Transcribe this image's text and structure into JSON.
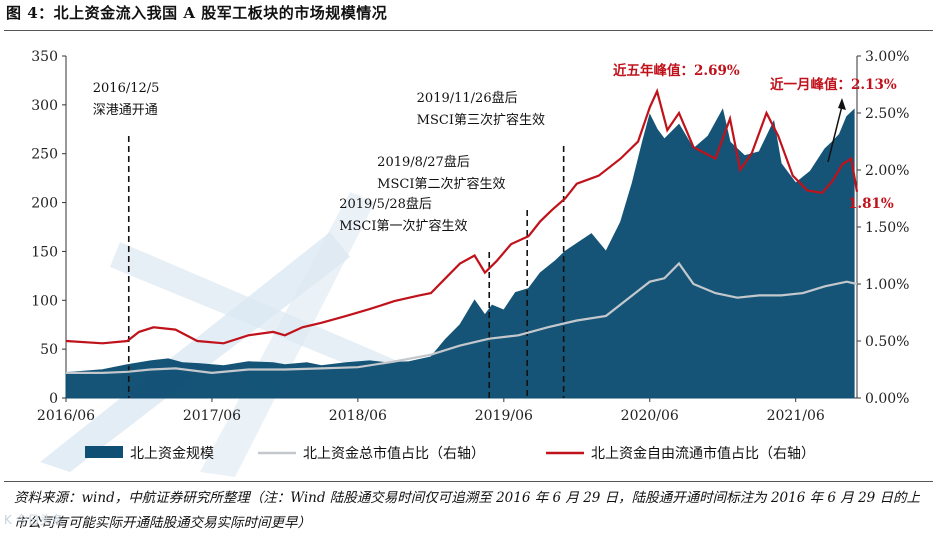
{
  "figure": {
    "title": "图 4：北上资金流入我国 A 股军工板块的市场规模情况",
    "source": "资料来源：wind，中航证券研究所整理（注：Wind 陆股通交易时间仅可追溯至 2016 年 6 月 29 日，陆股通开通时间标注为 2016 年 6 月 29 日的上市公司有可能实际开通陆股通交易实际时间更早）",
    "watermark": "K   今日头条"
  },
  "colors": {
    "area": "#0e4f73",
    "total_ratio_line": "#c4c8cc",
    "free_float_line": "#c0121b",
    "annotation_red": "#c0121b",
    "watermark_blue": "#dce8f2"
  },
  "chart_data": {
    "type": "area",
    "x_ticks": [
      "2016/06",
      "2017/06",
      "2018/06",
      "2019/06",
      "2020/06",
      "2021/06"
    ],
    "y_left": {
      "min": 0,
      "max": 350,
      "step": 50,
      "ticks": [
        "0",
        "50",
        "100",
        "150",
        "200",
        "250",
        "300",
        "350"
      ]
    },
    "y_right": {
      "min": 0,
      "max": 3.0,
      "ticks": [
        "0.00%",
        "0.50%",
        "1.00%",
        "1.50%",
        "2.00%",
        "2.50%",
        "3.00%"
      ]
    },
    "series": [
      {
        "name": "北上资金规模",
        "axis": "left",
        "kind": "area",
        "points": [
          [
            2016.5,
            26
          ],
          [
            2016.75,
            29
          ],
          [
            2016.92,
            34
          ],
          [
            2017.08,
            38
          ],
          [
            2017.2,
            40
          ],
          [
            2017.3,
            36
          ],
          [
            2017.42,
            35
          ],
          [
            2017.58,
            33
          ],
          [
            2017.75,
            37
          ],
          [
            2017.92,
            36
          ],
          [
            2018.0,
            34
          ],
          [
            2018.15,
            36
          ],
          [
            2018.25,
            33
          ],
          [
            2018.42,
            36
          ],
          [
            2018.58,
            38
          ],
          [
            2018.7,
            36
          ],
          [
            2018.85,
            37
          ],
          [
            2019.0,
            42
          ],
          [
            2019.1,
            60
          ],
          [
            2019.2,
            75
          ],
          [
            2019.3,
            100
          ],
          [
            2019.37,
            85
          ],
          [
            2019.42,
            95
          ],
          [
            2019.5,
            90
          ],
          [
            2019.58,
            108
          ],
          [
            2019.67,
            112
          ],
          [
            2019.75,
            128
          ],
          [
            2019.85,
            140
          ],
          [
            2019.92,
            150
          ],
          [
            2020.0,
            158
          ],
          [
            2020.1,
            168
          ],
          [
            2020.2,
            150
          ],
          [
            2020.3,
            180
          ],
          [
            2020.38,
            220
          ],
          [
            2020.45,
            262
          ],
          [
            2020.5,
            290
          ],
          [
            2020.55,
            275
          ],
          [
            2020.6,
            265
          ],
          [
            2020.7,
            280
          ],
          [
            2020.8,
            255
          ],
          [
            2020.9,
            268
          ],
          [
            2021.0,
            295
          ],
          [
            2021.05,
            262
          ],
          [
            2021.15,
            248
          ],
          [
            2021.25,
            252
          ],
          [
            2021.35,
            283
          ],
          [
            2021.4,
            240
          ],
          [
            2021.5,
            220
          ],
          [
            2021.6,
            232
          ],
          [
            2021.7,
            255
          ],
          [
            2021.75,
            262
          ],
          [
            2021.8,
            270
          ],
          [
            2021.85,
            288
          ],
          [
            2021.9,
            295
          ]
        ]
      },
      {
        "name": "北上资金总市值占比（右轴）",
        "axis": "right",
        "kind": "line",
        "points": [
          [
            2016.5,
            0.22
          ],
          [
            2016.75,
            0.22
          ],
          [
            2016.92,
            0.23
          ],
          [
            2017.08,
            0.25
          ],
          [
            2017.25,
            0.26
          ],
          [
            2017.5,
            0.22
          ],
          [
            2017.75,
            0.25
          ],
          [
            2018.0,
            0.25
          ],
          [
            2018.25,
            0.26
          ],
          [
            2018.5,
            0.27
          ],
          [
            2018.75,
            0.32
          ],
          [
            2019.0,
            0.38
          ],
          [
            2019.2,
            0.46
          ],
          [
            2019.4,
            0.52
          ],
          [
            2019.6,
            0.55
          ],
          [
            2019.8,
            0.62
          ],
          [
            2020.0,
            0.68
          ],
          [
            2020.2,
            0.72
          ],
          [
            2020.38,
            0.9
          ],
          [
            2020.5,
            1.02
          ],
          [
            2020.6,
            1.05
          ],
          [
            2020.7,
            1.18
          ],
          [
            2020.8,
            1.0
          ],
          [
            2020.95,
            0.92
          ],
          [
            2021.1,
            0.88
          ],
          [
            2021.25,
            0.9
          ],
          [
            2021.4,
            0.9
          ],
          [
            2021.55,
            0.92
          ],
          [
            2021.7,
            0.98
          ],
          [
            2021.85,
            1.02
          ],
          [
            2021.92,
            1.0
          ]
        ]
      },
      {
        "name": "北上资金自由流通市值占比（右轴）",
        "axis": "right",
        "kind": "line",
        "points": [
          [
            2016.5,
            0.5
          ],
          [
            2016.75,
            0.48
          ],
          [
            2016.92,
            0.5
          ],
          [
            2017.0,
            0.58
          ],
          [
            2017.1,
            0.62
          ],
          [
            2017.25,
            0.6
          ],
          [
            2017.4,
            0.5
          ],
          [
            2017.58,
            0.48
          ],
          [
            2017.75,
            0.55
          ],
          [
            2017.92,
            0.58
          ],
          [
            2018.0,
            0.55
          ],
          [
            2018.12,
            0.62
          ],
          [
            2018.25,
            0.66
          ],
          [
            2018.42,
            0.72
          ],
          [
            2018.58,
            0.78
          ],
          [
            2018.75,
            0.85
          ],
          [
            2018.92,
            0.9
          ],
          [
            2019.0,
            0.92
          ],
          [
            2019.1,
            1.05
          ],
          [
            2019.2,
            1.18
          ],
          [
            2019.3,
            1.25
          ],
          [
            2019.37,
            1.1
          ],
          [
            2019.45,
            1.2
          ],
          [
            2019.55,
            1.35
          ],
          [
            2019.67,
            1.42
          ],
          [
            2019.75,
            1.55
          ],
          [
            2019.83,
            1.65
          ],
          [
            2019.92,
            1.75
          ],
          [
            2020.0,
            1.88
          ],
          [
            2020.15,
            1.95
          ],
          [
            2020.3,
            2.1
          ],
          [
            2020.42,
            2.25
          ],
          [
            2020.5,
            2.55
          ],
          [
            2020.55,
            2.69
          ],
          [
            2020.62,
            2.35
          ],
          [
            2020.7,
            2.5
          ],
          [
            2020.8,
            2.2
          ],
          [
            2020.95,
            2.1
          ],
          [
            2021.05,
            2.45
          ],
          [
            2021.12,
            2.0
          ],
          [
            2021.2,
            2.15
          ],
          [
            2021.3,
            2.5
          ],
          [
            2021.38,
            2.3
          ],
          [
            2021.48,
            1.95
          ],
          [
            2021.58,
            1.82
          ],
          [
            2021.68,
            1.8
          ],
          [
            2021.75,
            1.9
          ],
          [
            2021.82,
            2.05
          ],
          [
            2021.88,
            2.1
          ],
          [
            2021.92,
            1.81
          ]
        ]
      }
    ],
    "events": [
      {
        "x": 2016.93,
        "label": "2016/12/5\n深港通开通"
      },
      {
        "x": 2019.4,
        "label": "2019/5/28盘后\nMSCI第一次扩容生效"
      },
      {
        "x": 2019.66,
        "label": "2019/8/27盘后\nMSCI第二次扩容生效"
      },
      {
        "x": 2019.91,
        "label": "2019/11/26盘后\nMSCI第三次扩容生效"
      }
    ],
    "annotations": [
      {
        "text": "近五年峰值：2.69%",
        "x": 2020.55,
        "y": 2.69
      },
      {
        "text": "近一月峰值：2.13%",
        "x": 2021.88,
        "y": 2.13
      },
      {
        "text": "1.81%",
        "x": 2021.92,
        "y": 1.81
      }
    ]
  }
}
